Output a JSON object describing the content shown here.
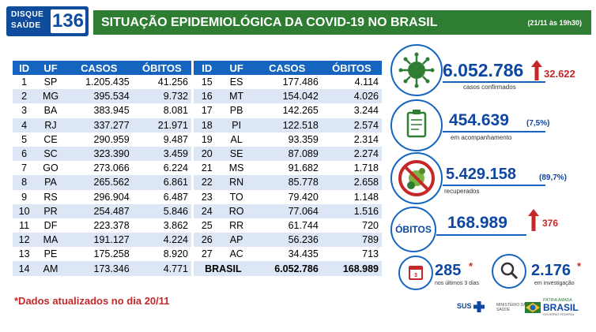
{
  "header": {
    "logo_top": "DISQUE",
    "logo_bottom": "SAÚDE",
    "logo_number": "136",
    "title": "SITUAÇÃO EPIDEMIOLÓGICA DA COVID-19 NO BRASIL",
    "date": "(21/11 às 19h30)"
  },
  "table": {
    "columns": [
      "ID",
      "UF",
      "CASOS",
      "ÓBITOS"
    ],
    "left_rows": [
      [
        "1",
        "SP",
        "1.205.435",
        "41.256"
      ],
      [
        "2",
        "MG",
        "395.534",
        "9.732"
      ],
      [
        "3",
        "BA",
        "383.945",
        "8.081"
      ],
      [
        "4",
        "RJ",
        "337.277",
        "21.971"
      ],
      [
        "5",
        "CE",
        "290.959",
        "9.487"
      ],
      [
        "6",
        "SC",
        "323.390",
        "3.459"
      ],
      [
        "7",
        "GO",
        "273.066",
        "6.224"
      ],
      [
        "8",
        "PA",
        "265.562",
        "6.861"
      ],
      [
        "9",
        "RS",
        "296.904",
        "6.487"
      ],
      [
        "10",
        "PR",
        "254.487",
        "5.846"
      ],
      [
        "11",
        "DF",
        "223.378",
        "3.862"
      ],
      [
        "12",
        "MA",
        "191.127",
        "4.224"
      ],
      [
        "13",
        "PE",
        "175.258",
        "8.920"
      ],
      [
        "14",
        "AM",
        "173.346",
        "4.771"
      ]
    ],
    "right_rows": [
      [
        "15",
        "ES",
        "177.486",
        "4.114"
      ],
      [
        "16",
        "MT",
        "154.042",
        "4.026"
      ],
      [
        "17",
        "PB",
        "142.265",
        "3.244"
      ],
      [
        "18",
        "PI",
        "122.518",
        "2.574"
      ],
      [
        "19",
        "AL",
        "93.359",
        "2.314"
      ],
      [
        "20",
        "SE",
        "87.089",
        "2.274"
      ],
      [
        "21",
        "MS",
        "91.682",
        "1.718"
      ],
      [
        "22",
        "RN",
        "85.778",
        "2.658"
      ],
      [
        "23",
        "TO",
        "79.420",
        "1.148"
      ],
      [
        "24",
        "RO",
        "77.064",
        "1.516"
      ],
      [
        "25",
        "RR",
        "61.744",
        "720"
      ],
      [
        "26",
        "AP",
        "56.236",
        "789"
      ],
      [
        "27",
        "AC",
        "34.435",
        "713"
      ]
    ],
    "total": {
      "label": "BRASIL",
      "cases": "6.052.786",
      "deaths": "168.989"
    }
  },
  "stats": {
    "confirmed": {
      "value": "6.052.786",
      "increase": "32.622",
      "caption": "casos confirmados"
    },
    "monitoring": {
      "value": "454.639",
      "percent": "(7,5%)",
      "caption": "em acompanhamento"
    },
    "recovered": {
      "value": "5.429.158",
      "percent": "(89,7%)",
      "caption": "recuperados"
    },
    "deaths": {
      "label": "ÓBITOS",
      "value": "168.989",
      "increase": "376"
    },
    "last3days": {
      "value": "285",
      "mark": "*",
      "caption": "nos últimos 3 dias"
    },
    "investigation": {
      "value": "2.176",
      "mark": "*",
      "caption": "em investigação"
    }
  },
  "footnote": "*Dados atualizados no dia  20/11",
  "footer": {
    "sus": "SUS",
    "ministry_line1": "MINISTÉRIO DA",
    "ministry_line2": "SAÚDE",
    "gov_top": "PÁTRIA AMADA",
    "gov_main": "BRASIL",
    "gov_sub": "GOVERNO FEDERAL"
  },
  "colors": {
    "header_green": "#2e7d32",
    "table_blue": "#1565c0",
    "alert_red": "#c62828",
    "text_blue": "#0d47a1"
  }
}
